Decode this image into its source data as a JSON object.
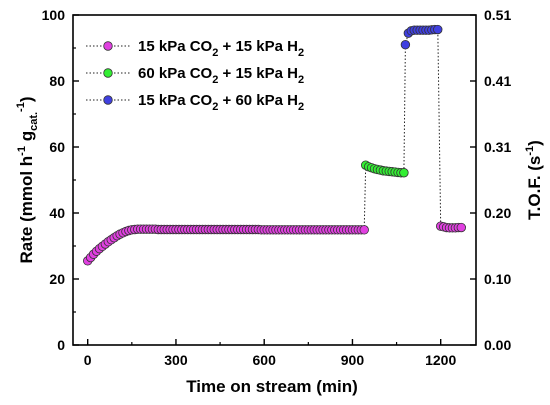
{
  "chart_data": {
    "type": "scatter",
    "xlabel": "Time on stream  (min)",
    "ylabel_left": "Rate  (mmol h",
    "ylabel_left_sup1": "-1",
    "ylabel_left_mid": " g",
    "ylabel_left_sub": "cat.",
    "ylabel_left_sup2": "-1",
    "ylabel_left_end": ")",
    "ylabel_right": "T.O.F.  (s",
    "ylabel_right_sup": "-1",
    "ylabel_right_end": ")",
    "xlim": [
      -50,
      1320
    ],
    "ylim": [
      0,
      100
    ],
    "xticks": [
      "0",
      "300",
      "600",
      "900",
      "1200"
    ],
    "xtick_values": [
      0,
      300,
      600,
      900,
      1200
    ],
    "yticks_left": [
      "0",
      "20",
      "40",
      "60",
      "80",
      "100"
    ],
    "ytick_values_left": [
      0,
      20,
      40,
      60,
      80,
      100
    ],
    "yticks_right": [
      "0.00",
      "0.10",
      "0.20",
      "0.31",
      "0.41",
      "0.51"
    ],
    "ytick_values_right": [
      0,
      20,
      40,
      60,
      80,
      100
    ],
    "grid": false,
    "legend_position": "top-left",
    "connector_style": "dotted",
    "series": [
      {
        "name": "15 kPa CO2 + 15 kPa H2",
        "legend_parts": [
          "15 kPa CO",
          "2",
          " + 15 kPa H",
          "2"
        ],
        "color": "#e040e0",
        "x": [
          0,
          10,
          20,
          30,
          40,
          50,
          60,
          70,
          80,
          90,
          100,
          110,
          120,
          130,
          140,
          150,
          160,
          170,
          180,
          190,
          200,
          210,
          220,
          230,
          240,
          250,
          260,
          270,
          280,
          290,
          300,
          310,
          320,
          330,
          340,
          350,
          360,
          370,
          380,
          390,
          400,
          410,
          420,
          430,
          440,
          450,
          460,
          470,
          480,
          490,
          500,
          510,
          520,
          530,
          540,
          550,
          560,
          570,
          580,
          590,
          600,
          610,
          620,
          630,
          640,
          650,
          660,
          670,
          680,
          690,
          700,
          710,
          720,
          730,
          740,
          750,
          760,
          770,
          780,
          790,
          800,
          810,
          820,
          830,
          840,
          850,
          860,
          870,
          880,
          890,
          900,
          910,
          920,
          930,
          940
        ],
        "y": [
          25.5,
          26.5,
          27.5,
          28.4,
          29.2,
          29.9,
          30.6,
          31.3,
          31.9,
          32.5,
          33.1,
          33.6,
          34.0,
          34.4,
          34.7,
          34.9,
          35.0,
          35.1,
          35.1,
          35.1,
          35.1,
          35.1,
          35.1,
          35.1,
          35.0,
          35.0,
          35.0,
          35.0,
          35.0,
          35.0,
          35.0,
          35.0,
          35.0,
          35.0,
          35.0,
          35.0,
          35.0,
          35.0,
          35.0,
          35.0,
          35.0,
          35.0,
          35.0,
          35.0,
          35.0,
          35.0,
          35.0,
          35.0,
          35.0,
          35.0,
          35.0,
          35.0,
          35.0,
          35.0,
          35.0,
          35.0,
          35.0,
          35.0,
          35.0,
          34.9,
          34.9,
          34.9,
          34.9,
          34.9,
          34.9,
          34.9,
          34.9,
          34.9,
          34.9,
          34.9,
          34.9,
          34.9,
          34.9,
          34.9,
          34.9,
          34.9,
          34.9,
          34.9,
          34.9,
          34.9,
          34.9,
          34.9,
          34.9,
          34.9,
          34.9,
          34.9,
          34.9,
          34.9,
          34.9,
          34.9,
          34.9,
          34.9,
          34.9,
          34.9,
          34.9
        ]
      },
      {
        "name": "60 kPa CO2 + 15 kPa H2",
        "legend_parts": [
          "60 kPa CO",
          "2",
          " + 15 kPa H",
          "2"
        ],
        "color": "#33ee33",
        "x": [
          945,
          955,
          965,
          975,
          985,
          995,
          1005,
          1015,
          1025,
          1035,
          1045,
          1055,
          1065,
          1075
        ],
        "y": [
          54.5,
          54.0,
          53.7,
          53.4,
          53.2,
          53.0,
          52.8,
          52.7,
          52.6,
          52.5,
          52.4,
          52.3,
          52.2,
          52.2
        ]
      },
      {
        "name": "15 kPa CO2 + 60 kPa H2",
        "legend_parts": [
          "15 kPa CO",
          "2",
          " + 60 kPa H",
          "2"
        ],
        "color": "#4040e0",
        "x": [
          1080,
          1090,
          1100,
          1110,
          1120,
          1130,
          1140,
          1150,
          1160,
          1170,
          1180,
          1190
        ],
        "y": [
          91.0,
          94.5,
          95.2,
          95.4,
          95.4,
          95.4,
          95.4,
          95.4,
          95.4,
          95.5,
          95.6,
          95.6
        ]
      },
      {
        "name": "15 kPa CO2 + 15 kPa H2 (return)",
        "legend": false,
        "color": "#e040e0",
        "x": [
          1200,
          1210,
          1220,
          1230,
          1240,
          1250,
          1260,
          1270
        ],
        "y": [
          36.0,
          35.8,
          35.6,
          35.5,
          35.5,
          35.5,
          35.6,
          35.6
        ]
      }
    ]
  }
}
